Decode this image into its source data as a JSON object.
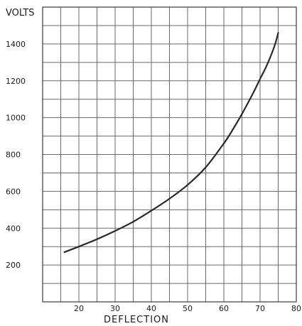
{
  "chart_data": {
    "type": "line",
    "ylabel": "VOLTS",
    "xlabel": "DEFLECTION",
    "xlim": [
      10,
      80
    ],
    "ylim": [
      0,
      1600
    ],
    "grid": true,
    "x_ticks": [
      20,
      30,
      40,
      50,
      60,
      70,
      80
    ],
    "y_ticks": [
      200,
      400,
      600,
      800,
      1000,
      1200,
      1400
    ],
    "series": [
      {
        "x": [
          16,
          20,
          25,
          30,
          35,
          40,
          45,
          50,
          55,
          60,
          62,
          65,
          68,
          70,
          72,
          74,
          75
        ],
        "y": [
          270,
          300,
          340,
          385,
          435,
          495,
          560,
          635,
          730,
          860,
          920,
          1020,
          1130,
          1210,
          1290,
          1390,
          1460
        ]
      }
    ]
  },
  "colors": {
    "line": "#2a2a2a",
    "grid": "#6a6a6a",
    "frame": "#3a3a3a"
  }
}
